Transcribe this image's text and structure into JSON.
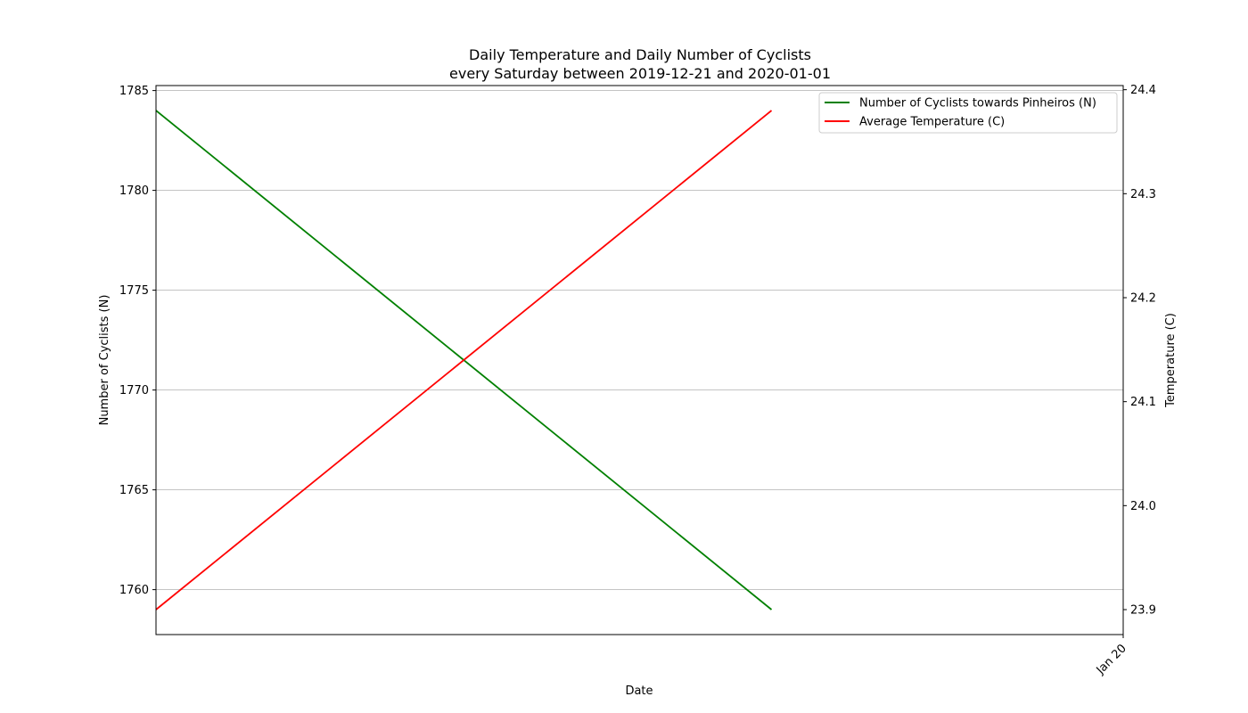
{
  "chart_data": {
    "type": "line",
    "title": "Daily Temperature and Daily Number of Cyclists\nevery Saturday between 2019-12-21 and 2020-01-01",
    "xlabel": "Date",
    "ylabel_left": "Number of Cyclists (N)",
    "ylabel_right": "Temperature (C)",
    "x_tick_labels": [
      {
        "date": "2020-01-01",
        "label": "Jan 20"
      }
    ],
    "x": [
      "2019-12-21",
      "2019-12-28"
    ],
    "xlim": [
      "2019-12-21",
      "2020-01-01"
    ],
    "series": [
      {
        "name": "Number of Cyclists towards Pinheiros (N)",
        "axis": "left",
        "color": "#008000",
        "values": [
          1784,
          1759
        ]
      },
      {
        "name": "Average Temperature (C)",
        "axis": "right",
        "color": "#ff0000",
        "values": [
          23.9,
          24.38
        ]
      }
    ],
    "ylim_left": [
      1757.75,
      1785.25
    ],
    "yticks_left": [
      1760,
      1765,
      1770,
      1775,
      1780,
      1785
    ],
    "ylim_right": [
      23.876,
      24.404
    ],
    "yticks_right": [
      23.9,
      24.0,
      24.1,
      24.2,
      24.3,
      24.4
    ],
    "grid": "horizontal",
    "legend_position": "top-right"
  }
}
